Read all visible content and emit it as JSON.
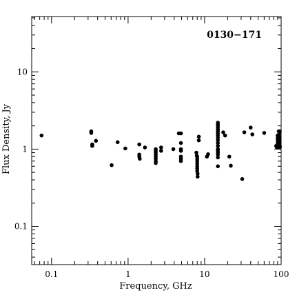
{
  "chart_data": {
    "type": "scatter",
    "title": "0130−171",
    "xlabel": "Frequency, GHz",
    "ylabel": "Flux Density, Jy",
    "xscale": "log",
    "yscale": "log",
    "xlim": [
      0.055,
      100
    ],
    "ylim": [
      0.032,
      52
    ],
    "xticks": [
      {
        "value": 0.1,
        "label": "0.1"
      },
      {
        "value": 1,
        "label": "1"
      },
      {
        "value": 10,
        "label": "10"
      },
      {
        "value": 100,
        "label": "100"
      }
    ],
    "yticks": [
      {
        "value": 0.1,
        "label": "0.1"
      },
      {
        "value": 1,
        "label": "1"
      },
      {
        "value": 10,
        "label": "10"
      }
    ],
    "title_position": "top-right",
    "grid": false,
    "marker_color": "#000000",
    "points": [
      [
        0.074,
        1.5
      ],
      [
        0.33,
        1.7
      ],
      [
        0.33,
        1.62
      ],
      [
        0.34,
        1.15
      ],
      [
        0.34,
        1.1
      ],
      [
        0.38,
        1.28
      ],
      [
        0.61,
        0.62
      ],
      [
        0.73,
        1.23
      ],
      [
        0.92,
        1.02
      ],
      [
        1.4,
        1.15
      ],
      [
        1.4,
        0.85
      ],
      [
        1.4,
        0.8
      ],
      [
        1.42,
        0.75
      ],
      [
        1.66,
        1.05
      ],
      [
        2.3,
        1.0
      ],
      [
        2.3,
        0.95
      ],
      [
        2.3,
        0.9
      ],
      [
        2.3,
        0.85
      ],
      [
        2.3,
        0.8
      ],
      [
        2.3,
        0.75
      ],
      [
        2.3,
        0.7
      ],
      [
        2.3,
        0.66
      ],
      [
        2.7,
        1.05
      ],
      [
        2.7,
        0.95
      ],
      [
        3.9,
        1.0
      ],
      [
        4.6,
        1.6
      ],
      [
        4.9,
        1.6
      ],
      [
        4.9,
        1.2
      ],
      [
        4.9,
        1.0
      ],
      [
        4.9,
        0.95
      ],
      [
        4.9,
        0.8
      ],
      [
        4.9,
        0.75
      ],
      [
        4.9,
        0.7
      ],
      [
        7.8,
        0.9
      ],
      [
        7.9,
        0.82
      ],
      [
        8.0,
        0.8
      ],
      [
        8.0,
        0.75
      ],
      [
        8.0,
        0.7
      ],
      [
        8.0,
        0.65
      ],
      [
        8.0,
        0.6
      ],
      [
        8.0,
        0.56
      ],
      [
        8.0,
        0.52
      ],
      [
        8.1,
        0.48
      ],
      [
        8.1,
        0.44
      ],
      [
        8.4,
        1.45
      ],
      [
        8.4,
        1.3
      ],
      [
        10.7,
        0.8
      ],
      [
        11.1,
        0.86
      ],
      [
        14.9,
        2.2
      ],
      [
        14.9,
        2.1
      ],
      [
        14.9,
        2.0
      ],
      [
        14.9,
        1.9
      ],
      [
        14.9,
        1.8
      ],
      [
        14.9,
        1.7
      ],
      [
        14.9,
        1.6
      ],
      [
        14.9,
        1.5
      ],
      [
        14.9,
        1.4
      ],
      [
        14.9,
        1.3
      ],
      [
        14.9,
        1.2
      ],
      [
        14.9,
        1.1
      ],
      [
        14.9,
        1.0
      ],
      [
        14.9,
        0.95
      ],
      [
        14.9,
        0.9
      ],
      [
        14.9,
        0.85
      ],
      [
        14.9,
        0.78
      ],
      [
        14.9,
        0.6
      ],
      [
        17.5,
        1.65
      ],
      [
        18.5,
        1.5
      ],
      [
        21.0,
        0.8
      ],
      [
        22.0,
        0.61
      ],
      [
        31.0,
        0.41
      ],
      [
        33.0,
        1.65
      ],
      [
        40.0,
        1.9
      ],
      [
        42.0,
        1.55
      ],
      [
        60.0,
        1.62
      ],
      [
        86.0,
        1.1
      ],
      [
        88.0,
        1.05
      ],
      [
        90.0,
        1.5
      ],
      [
        90.0,
        1.4
      ],
      [
        90.0,
        1.3
      ],
      [
        90.0,
        1.2
      ],
      [
        90.0,
        1.1
      ],
      [
        93.0,
        1.7
      ],
      [
        95.0,
        1.6
      ],
      [
        95.0,
        1.45
      ],
      [
        95.0,
        1.35
      ],
      [
        95.0,
        1.25
      ],
      [
        95.0,
        1.15
      ],
      [
        97.0,
        1.08
      ],
      [
        98.0,
        1.05
      ],
      [
        100.0,
        1.7
      ],
      [
        100.0,
        1.1
      ]
    ]
  }
}
